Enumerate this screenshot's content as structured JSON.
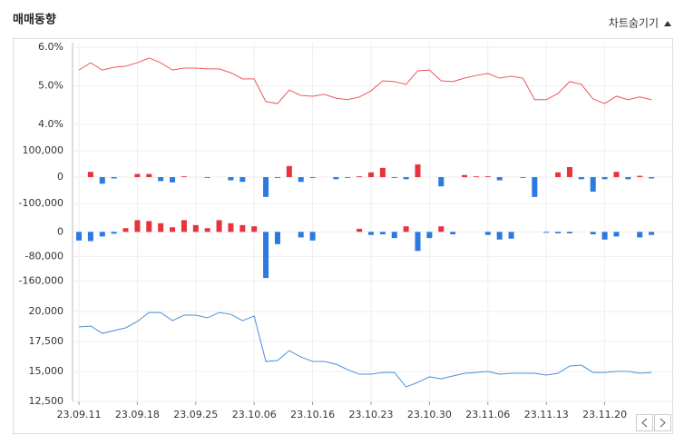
{
  "header": {
    "title": "매매동향",
    "toggle": "차트숨기기"
  },
  "chart_data": [
    {
      "type": "line",
      "color": "#f0555a",
      "ylim": [
        3.81,
        6.12
      ],
      "yticks": [
        {
          "value": 6,
          "label": "6.0%"
        },
        {
          "value": 5,
          "label": "5.0%"
        },
        {
          "value": 4,
          "label": "4.0%"
        }
      ],
      "values": [
        5.41,
        5.6,
        5.41,
        5.48,
        5.51,
        5.6,
        5.72,
        5.6,
        5.41,
        5.46,
        5.46,
        5.44,
        5.44,
        5.34,
        5.18,
        5.18,
        4.59,
        4.54,
        4.89,
        4.75,
        4.73,
        4.78,
        4.68,
        4.64,
        4.71,
        4.87,
        5.13,
        5.11,
        5.04,
        5.39,
        5.41,
        5.13,
        5.11,
        5.2,
        5.27,
        5.32,
        5.2,
        5.25,
        5.2,
        4.64,
        4.64,
        4.8,
        5.11,
        5.04,
        4.66,
        4.54,
        4.73,
        4.64,
        4.71,
        4.64
      ]
    },
    {
      "type": "bar",
      "pos_color": "#e8323c",
      "neg_color": "#2a7ae2",
      "ylim": [
        -134000,
        148000
      ],
      "yticks": [
        {
          "value": 100000,
          "label": "100,000"
        },
        0,
        {
          "value": -100000,
          "label": "-100,000"
        }
      ],
      "values": [
        0,
        20000,
        -25000,
        -5000,
        0,
        12000,
        12000,
        -15000,
        -20000,
        3000,
        0,
        -3000,
        0,
        -12000,
        -18000,
        0,
        -75000,
        -3000,
        42000,
        -18000,
        -3000,
        0,
        -8000,
        -3000,
        3000,
        18000,
        35000,
        -3000,
        -8000,
        48000,
        0,
        -35000,
        0,
        8000,
        3000,
        3000,
        -12000,
        0,
        -3000,
        -75000,
        0,
        18000,
        38000,
        -8000,
        -55000,
        -8000,
        20000,
        -8000,
        5000,
        -5000
      ]
    },
    {
      "type": "bar",
      "pos_color": "#e8323c",
      "neg_color": "#2a7ae2",
      "ylim": [
        -185000,
        57000
      ],
      "yticks": [
        0,
        {
          "value": -80000,
          "label": "-80,000"
        },
        {
          "value": -160000,
          "label": "-160,000"
        }
      ],
      "values": [
        -28000,
        -30000,
        -15000,
        -6000,
        12000,
        38000,
        35000,
        28000,
        15000,
        38000,
        22000,
        12000,
        38000,
        28000,
        22000,
        18000,
        -150000,
        -40000,
        0,
        -18000,
        -28000,
        0,
        0,
        0,
        10000,
        -10000,
        -8000,
        -20000,
        18000,
        -62000,
        -20000,
        18000,
        -8000,
        0,
        0,
        -10000,
        -25000,
        -22000,
        0,
        0,
        -3000,
        -5000,
        -5000,
        0,
        -8000,
        -25000,
        -15000,
        0,
        -18000,
        -10000
      ]
    },
    {
      "type": "line",
      "color": "#4a90d9",
      "ylim": [
        12500,
        20760
      ],
      "yticks": [
        {
          "value": 20000,
          "label": "20,000"
        },
        {
          "value": 17500,
          "label": "17,500"
        },
        {
          "value": 15000,
          "label": "15,000"
        },
        {
          "value": 12500,
          "label": "12,500"
        }
      ],
      "categories": [
        "23.09.11",
        null,
        null,
        null,
        null,
        "23.09.18",
        null,
        null,
        null,
        null,
        "23.09.25",
        null,
        null,
        null,
        null,
        "23.10.06",
        null,
        null,
        null,
        null,
        "23.10.16",
        null,
        null,
        null,
        null,
        "23.10.23",
        null,
        null,
        null,
        null,
        "23.10.30",
        null,
        null,
        null,
        null,
        "23.11.06",
        null,
        null,
        null,
        null,
        "23.11.13",
        null,
        null,
        null,
        null,
        "23.11.20",
        null,
        null,
        null,
        null
      ],
      "values": [
        18710,
        18790,
        18180,
        18410,
        18640,
        19170,
        19920,
        19920,
        19240,
        19700,
        19700,
        19470,
        19920,
        19770,
        19240,
        19620,
        15830,
        15910,
        16740,
        16210,
        15830,
        15830,
        15610,
        15150,
        14770,
        14770,
        14920,
        14920,
        13710,
        14090,
        14550,
        14390,
        14620,
        14850,
        14920,
        15000,
        14770,
        14850,
        14850,
        14850,
        14700,
        14850,
        15450,
        15530,
        14920,
        14920,
        15000,
        15000,
        14850,
        14920
      ]
    }
  ]
}
